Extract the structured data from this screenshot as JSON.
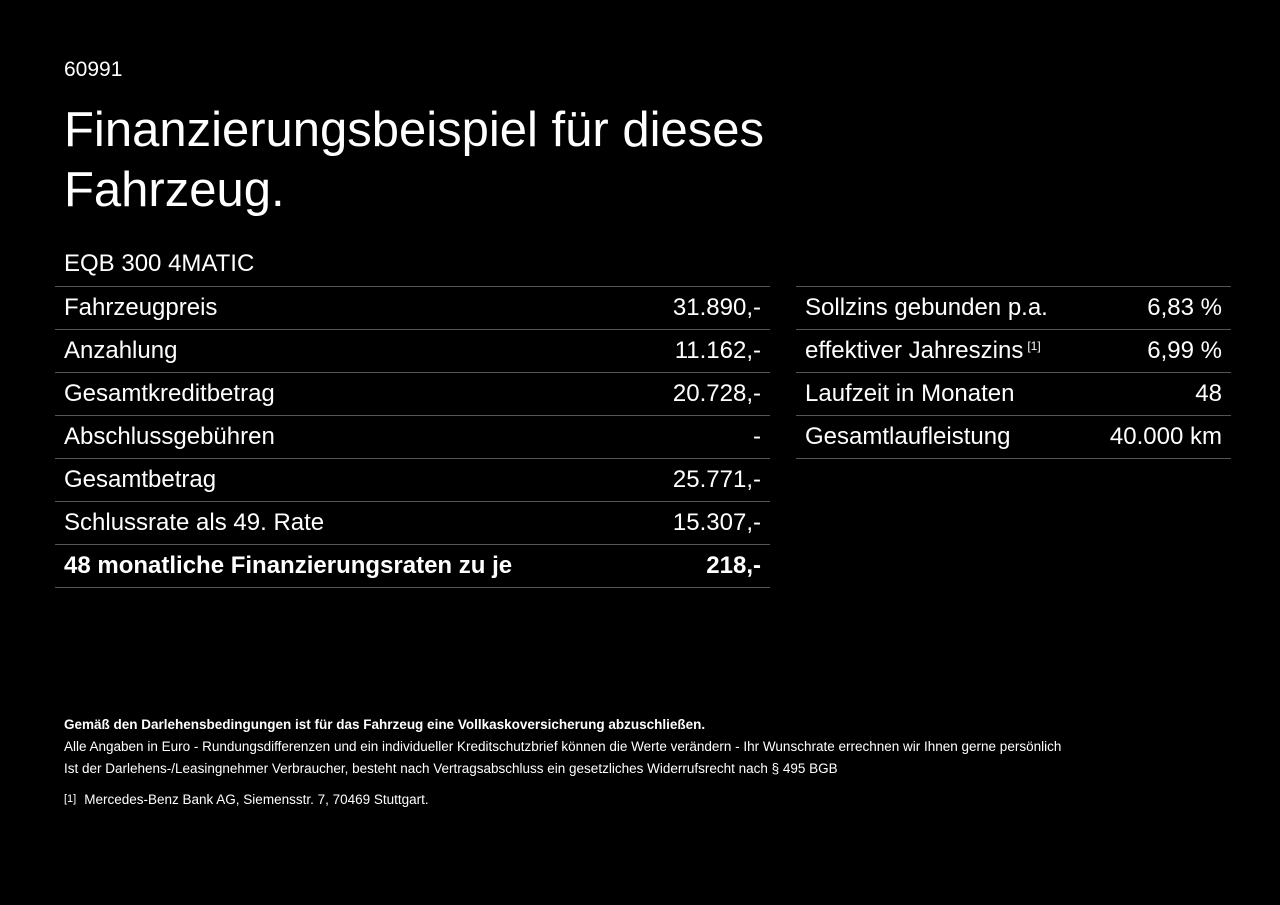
{
  "code": "60991",
  "title": "Finanzierungsbeispiel für dieses Fahrzeug.",
  "model": "EQB 300 4MATIC",
  "left_rows": [
    {
      "label": "Fahrzeugpreis",
      "value": "31.890,-"
    },
    {
      "label": "Anzahlung",
      "value": "11.162,-"
    },
    {
      "label": "Gesamtkreditbetrag",
      "value": "20.728,-"
    },
    {
      "label": "Abschlussgebühren",
      "value": "-"
    },
    {
      "label": "Gesamtbetrag",
      "value": "25.771,-"
    },
    {
      "label": "Schlussrate als 49. Rate",
      "value": "15.307,-"
    },
    {
      "label": "48 monatliche Finanzierungsraten zu je",
      "value": "218,-"
    }
  ],
  "right_rows": [
    {
      "label": "Sollzins gebunden p.a.",
      "value": "6,83 %"
    },
    {
      "label": "effektiver Jahreszins",
      "mark": "[1]",
      "value": "6,99 %"
    },
    {
      "label": "Laufzeit in Monaten",
      "value": "48"
    },
    {
      "label": "Gesamtlaufleistung",
      "value": "40.000 km"
    }
  ],
  "footer": {
    "bold": "Gemäß den Darlehensbedingungen ist für das Fahrzeug eine Vollkaskoversicherung abzuschließen.",
    "line1": "Alle Angaben in Euro - Rundungsdifferenzen und ein individueller Kreditschutzbrief können die Werte verändern - Ihr Wunschrate errechnen wir Ihnen gerne persönlich",
    "line2": "Ist der Darlehens-/Leasingnehmer Verbraucher, besteht nach Vertragsabschluss ein gesetzliches Widerrufsrecht nach § 495 BGB",
    "fn_mark": "[1]",
    "fn_text": "Mercedes-Benz Bank AG, Siemensstr. 7, 70469 Stuttgart."
  }
}
